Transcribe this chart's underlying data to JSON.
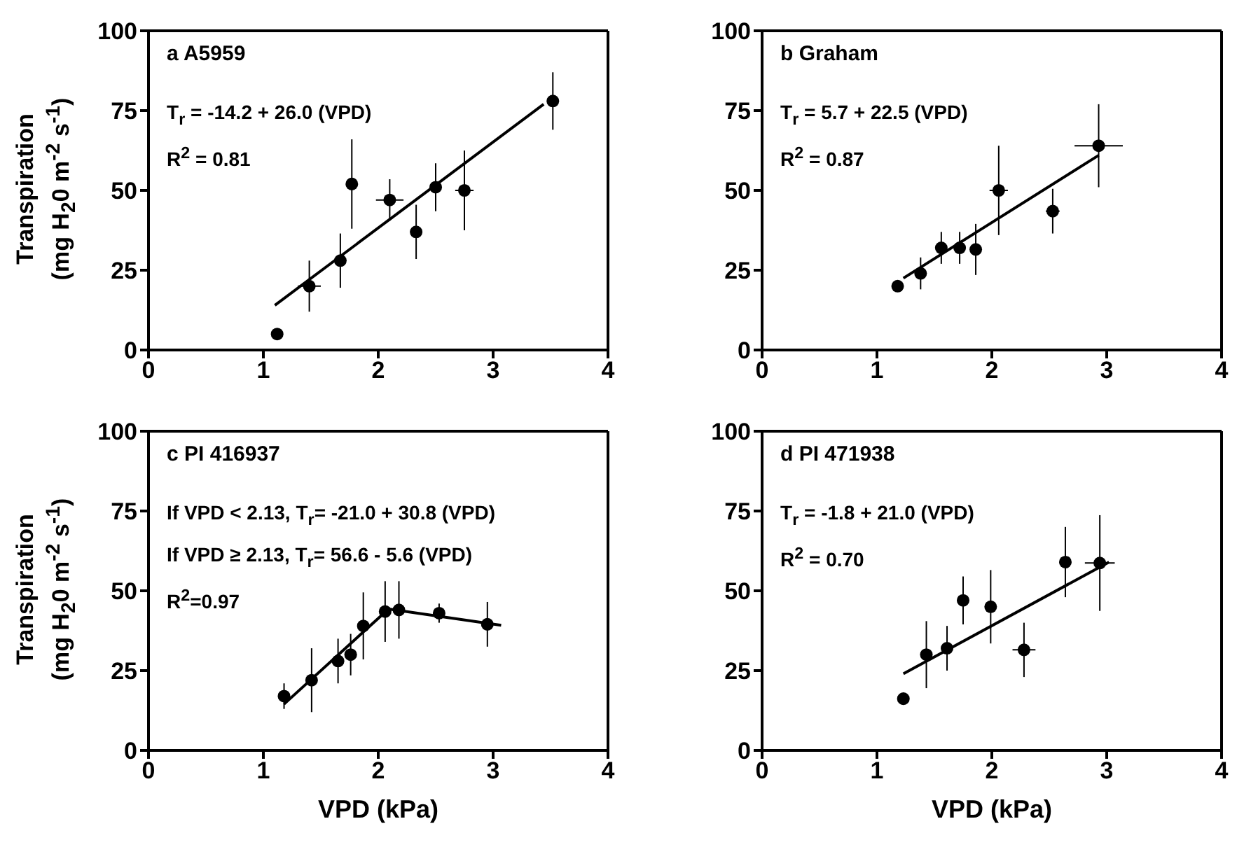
{
  "chart_data": [
    {
      "type": "scatter",
      "title": "a A5959",
      "ylabel": "Transpiration (mg H$_{2}$0 m$^{-2}$ s$^{-1}$)",
      "xlim": [
        0,
        4
      ],
      "xticks": [
        0,
        1,
        2,
        3,
        4
      ],
      "ylim": [
        0,
        100
      ],
      "yticks": [
        0,
        25,
        50,
        75,
        100
      ],
      "annotations": [
        "T$_{r}$ = -14.2 + 26.0 (VPD)",
        "R$^{2}$ = 0.81"
      ],
      "series": [
        {
          "marker": "circle",
          "color": "#000000",
          "x": [
            1.12,
            1.4,
            1.67,
            1.77,
            2.1,
            2.33,
            2.5,
            2.75,
            3.52
          ],
          "values": [
            5,
            20,
            28,
            52,
            47,
            37,
            51,
            50,
            78
          ],
          "errors": [
            null,
            8,
            8.5,
            14,
            6.5,
            8.5,
            7.5,
            12.5,
            9
          ],
          "xerrors": [
            null,
            0.1,
            null,
            null,
            0.12,
            null,
            null,
            0.08,
            null
          ]
        },
        {
          "type": "line",
          "marker": "none",
          "color": "#000000",
          "x": [
            1.1,
            3.44
          ],
          "values": [
            14,
            77
          ]
        }
      ]
    },
    {
      "type": "scatter",
      "title": "b Graham",
      "xlim": [
        0,
        4
      ],
      "xticks": [
        0,
        1,
        2,
        3,
        4
      ],
      "ylim": [
        0,
        100
      ],
      "yticks": [
        0,
        25,
        50,
        75,
        100
      ],
      "annotations": [
        "T$_{r}$ = 5.7 + 22.5 (VPD)",
        "R$^{2}$ = 0.87"
      ],
      "series": [
        {
          "marker": "circle",
          "color": "#000000",
          "x": [
            1.18,
            1.38,
            1.56,
            1.72,
            1.86,
            2.06,
            2.53,
            2.93
          ],
          "values": [
            20,
            24,
            32,
            32,
            31.5,
            50,
            43.5,
            64
          ],
          "errors": [
            null,
            5,
            5,
            5,
            8,
            14,
            7,
            13
          ],
          "xerrors": [
            null,
            null,
            null,
            null,
            null,
            0.08,
            0.06,
            0.21
          ]
        },
        {
          "type": "line",
          "marker": "none",
          "color": "#000000",
          "x": [
            1.23,
            2.93
          ],
          "values": [
            22.5,
            61
          ]
        }
      ]
    },
    {
      "type": "scatter",
      "title": "c PI 416937",
      "xlabel": "VPD (kPa)",
      "ylabel": "Transpiration (mg H$_{2}$0 m$^{-2}$ s$^{-1}$)",
      "xlim": [
        0,
        4
      ],
      "xticks": [
        0,
        1,
        2,
        3,
        4
      ],
      "ylim": [
        0,
        100
      ],
      "yticks": [
        0,
        25,
        50,
        75,
        100
      ],
      "annotations": [
        "If VPD < 2.13, T$_{r}$= -21.0 + 30.8 (VPD)",
        "If VPD ≥ 2.13, T$_{r}$= 56.6 - 5.6 (VPD)",
        "R$^{2}$=0.97"
      ],
      "series": [
        {
          "marker": "circle",
          "color": "#000000",
          "x": [
            1.18,
            1.42,
            1.65,
            1.76,
            1.87,
            2.06,
            2.18,
            2.53,
            2.95
          ],
          "values": [
            17,
            22,
            28,
            30,
            39,
            43.5,
            44,
            43,
            39.5
          ],
          "errors": [
            4,
            10,
            7,
            6.5,
            10.5,
            9.5,
            9,
            3,
            7
          ],
          "xerrors": [
            null,
            null,
            null,
            null,
            null,
            null,
            null,
            null,
            null
          ]
        },
        {
          "type": "line",
          "marker": "none",
          "color": "#000000",
          "x": [
            1.18,
            2.09,
            3.07
          ],
          "values": [
            14.5,
            44.3,
            39.2
          ]
        }
      ]
    },
    {
      "type": "scatter",
      "title": "d PI 471938",
      "xlabel": "VPD (kPa)",
      "xlim": [
        0,
        4
      ],
      "xticks": [
        0,
        1,
        2,
        3,
        4
      ],
      "ylim": [
        0,
        100
      ],
      "yticks": [
        0,
        25,
        50,
        75,
        100
      ],
      "annotations": [
        "T$_{r}$ = -1.8 + 21.0 (VPD)",
        "R$^{2}$ = 0.70"
      ],
      "series": [
        {
          "marker": "circle",
          "color": "#000000",
          "x": [
            1.23,
            1.43,
            1.61,
            1.75,
            1.99,
            2.28,
            2.64,
            2.94
          ],
          "values": [
            16.2,
            30,
            32,
            47,
            45,
            31.5,
            59,
            58.7
          ],
          "errors": [
            null,
            10.5,
            7,
            7.5,
            11.5,
            8.5,
            11,
            15
          ],
          "xerrors": [
            null,
            null,
            null,
            null,
            null,
            0.1,
            null,
            0.13
          ]
        },
        {
          "type": "line",
          "marker": "none",
          "color": "#000000",
          "x": [
            1.23,
            3.02
          ],
          "values": [
            24,
            59
          ]
        }
      ]
    }
  ]
}
